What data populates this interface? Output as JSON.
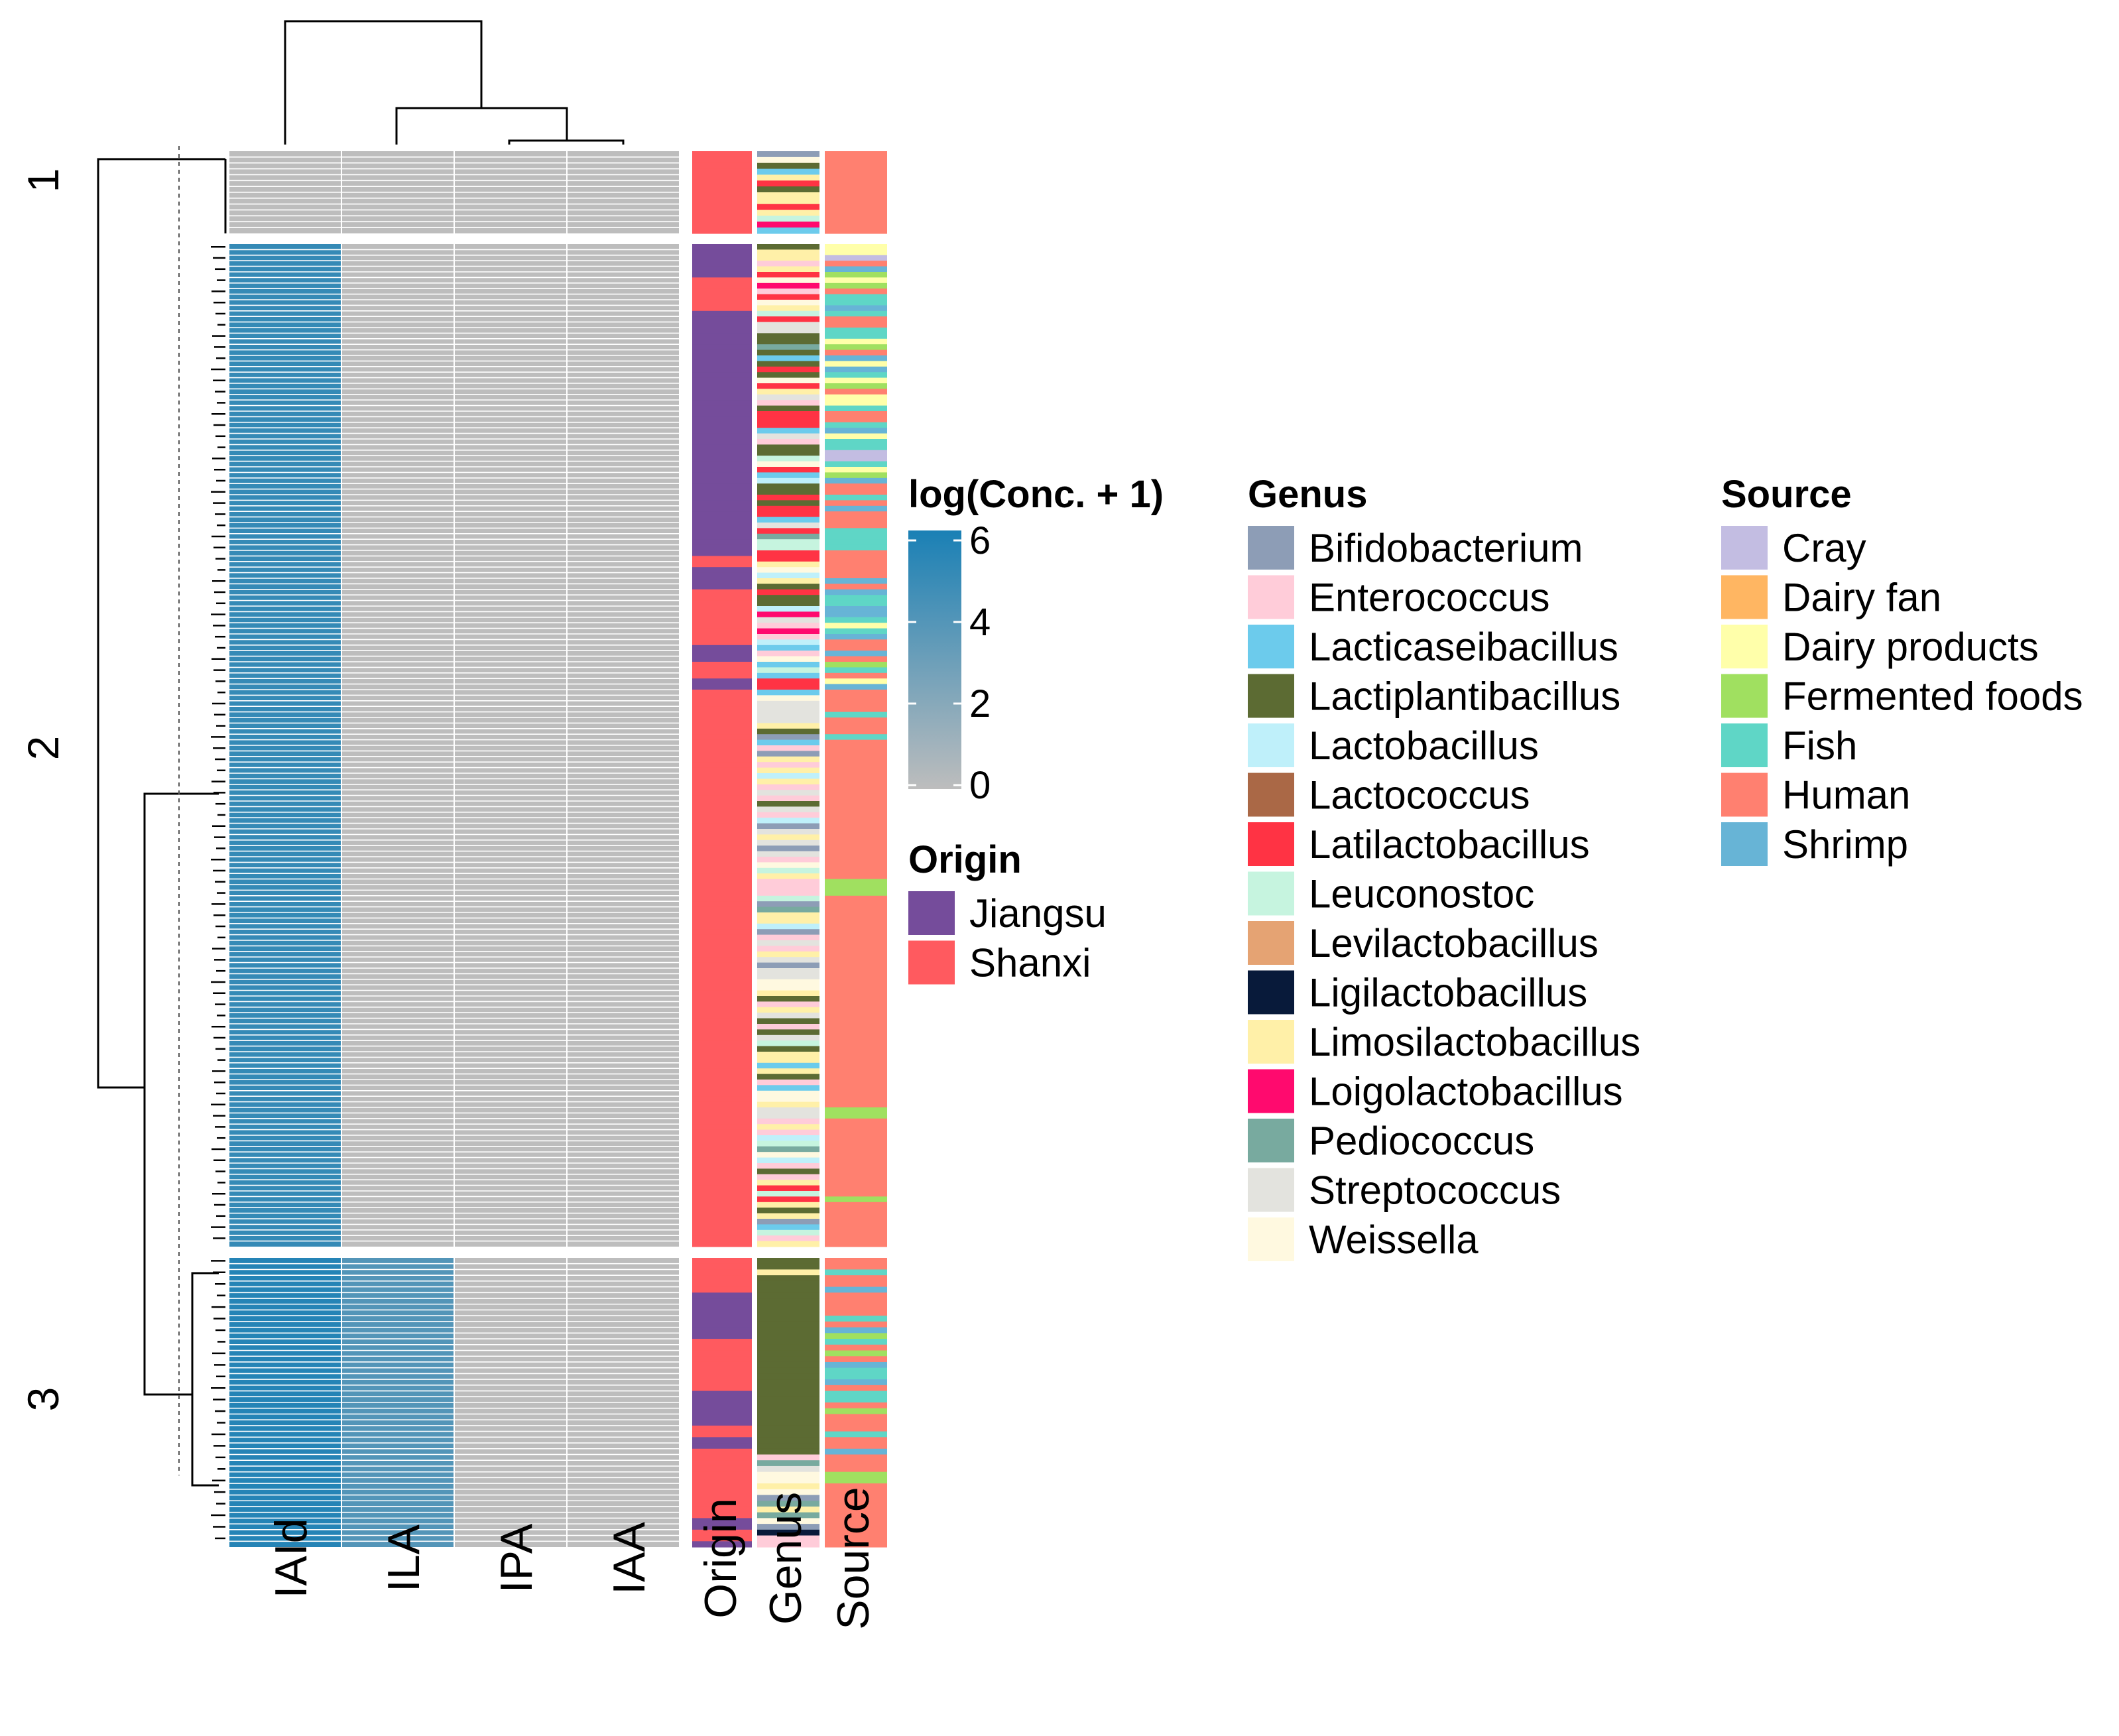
{
  "chart_data": {
    "type": "heatmap",
    "title": "",
    "columns": [
      "IAId",
      "ILA",
      "IPA",
      "IAA"
    ],
    "annotation_columns": [
      "Origin",
      "Genus",
      "Source"
    ],
    "row_clusters": [
      {
        "label": "1",
        "rows": 14,
        "values": {
          "IAId": 0,
          "ILA": 0,
          "IPA": 0,
          "IAA": 0
        }
      },
      {
        "label": "2",
        "rows": 180,
        "values": {
          "IAId": 5.0,
          "ILA": 0,
          "IPA": 0,
          "IAA": 0
        }
      },
      {
        "label": "3",
        "rows": 50,
        "values": {
          "IAId": 5.6,
          "ILA": 3.9,
          "IPA": 0,
          "IAA": 0
        }
      }
    ],
    "colorbar": {
      "title": "log(Conc. + 1)",
      "min": 0,
      "max": 6,
      "ticks": [
        "0",
        "2",
        "4",
        "6"
      ],
      "low_color": "#bdbdbd",
      "high_color": "#1a80b5"
    },
    "legends": {
      "origin": {
        "title": "Origin",
        "items": [
          {
            "label": "Jiangsu",
            "color": "#754c9b"
          },
          {
            "label": "Shanxi",
            "color": "#ff5a5f"
          }
        ]
      },
      "genus": {
        "title": "Genus",
        "items": [
          {
            "label": "Bifidobacterium",
            "color": "#8d9db6"
          },
          {
            "label": "Enterococcus",
            "color": "#ffccd9"
          },
          {
            "label": "Lacticaseibacillus",
            "color": "#6ccbec"
          },
          {
            "label": "Lactiplantibacillus",
            "color": "#5c6b33"
          },
          {
            "label": "Lactobacillus",
            "color": "#bff0fa"
          },
          {
            "label": "Lactococcus",
            "color": "#aa6846"
          },
          {
            "label": "Latilactobacillus",
            "color": "#ff3344"
          },
          {
            "label": "Leuconostoc",
            "color": "#c6f4df"
          },
          {
            "label": "Levilactobacillus",
            "color": "#e5a373"
          },
          {
            "label": "Ligilactobacillus",
            "color": "#081a3a"
          },
          {
            "label": "Limosilactobacillus",
            "color": "#fff0a8"
          },
          {
            "label": "Loigolactobacillus",
            "color": "#ff0a6e"
          },
          {
            "label": "Pediococcus",
            "color": "#78aa9f"
          },
          {
            "label": "Streptococcus",
            "color": "#e3e3de"
          },
          {
            "label": "Weissella",
            "color": "#fff9e0"
          }
        ]
      },
      "source": {
        "title": "Source",
        "items": [
          {
            "label": "Cray",
            "color": "#c3bde2"
          },
          {
            "label": "Dairy fan",
            "color": "#ffb662"
          },
          {
            "label": "Dairy products",
            "color": "#ffffaa"
          },
          {
            "label": "Fermented foods",
            "color": "#a0e060"
          },
          {
            "label": "Fish",
            "color": "#5fd6c6"
          },
          {
            "label": "Human",
            "color": "#ff8070"
          },
          {
            "label": "Shrimp",
            "color": "#67b4d6"
          }
        ]
      }
    }
  }
}
